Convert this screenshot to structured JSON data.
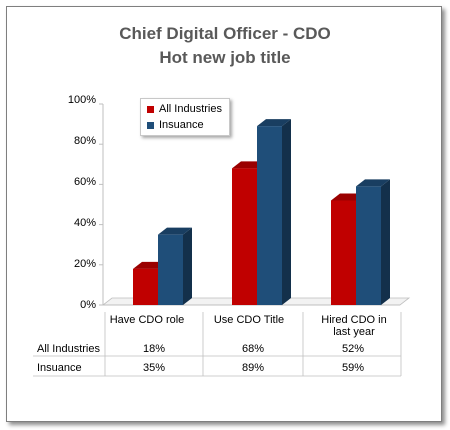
{
  "chart_data": {
    "type": "bar",
    "title": "Chief Digital Officer - CDO",
    "subtitle": "Hot new job title",
    "categories": [
      "Have CDO role",
      "Use CDO Title",
      "Hired CDO in last year"
    ],
    "category_lines": [
      [
        "Have CDO role"
      ],
      [
        "Use CDO Title"
      ],
      [
        "Hired CDO in",
        "last year"
      ]
    ],
    "series": [
      {
        "name": "All Industries",
        "values": [
          18,
          68,
          52
        ],
        "labels": [
          "18%",
          "68%",
          "52%"
        ],
        "color": "#c00000"
      },
      {
        "name": "Insuance",
        "values": [
          35,
          89,
          59
        ],
        "labels": [
          "35%",
          "89%",
          "59%"
        ],
        "color": "#1f4e79"
      }
    ],
    "yticks": [
      "0%",
      "20%",
      "40%",
      "60%",
      "80%",
      "100%"
    ],
    "ylim": [
      0,
      100
    ],
    "style": "3d",
    "grid": false,
    "legend": "top-left",
    "data_table": true
  }
}
